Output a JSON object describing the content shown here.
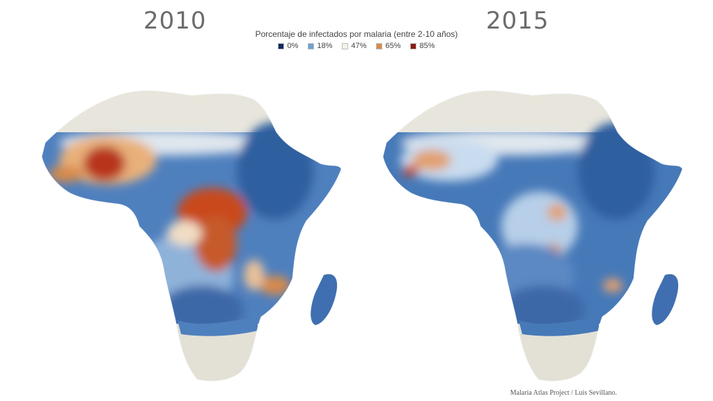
{
  "maps": [
    {
      "year": "2010"
    },
    {
      "year": "2015"
    }
  ],
  "legend": {
    "title": "Porcentaje de infectados por malaria (entre 2-10 años)",
    "items": [
      {
        "label": "0%",
        "color": "#0d2a5e"
      },
      {
        "label": "18%",
        "color": "#6fa0d2"
      },
      {
        "label": "47%",
        "color": "#f4f2ea"
      },
      {
        "label": "65%",
        "color": "#d9894a"
      },
      {
        "label": "85%",
        "color": "#8b1a14"
      }
    ]
  },
  "colors": {
    "land_north": "#e8e6dc",
    "land_south": "#e3e1d6",
    "borders": "#ffffff",
    "low": "#3f6fb0",
    "mid": "#a9c6e4",
    "high": "#d88a4a",
    "very_high": "#b8341f"
  },
  "credit": "Malaria Atlas Project / Luis Sevillano."
}
